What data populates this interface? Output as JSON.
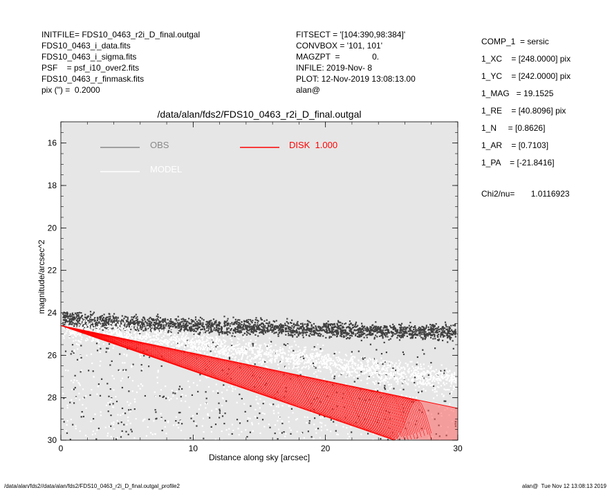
{
  "header_left": [
    "INITFILE= FDS10_0463_r2i_D_final.outgal",
    "FDS10_0463_i_data.fits",
    "FDS10_0463_i_sigma.fits",
    "PSF    = psf_i10_over2.fits",
    "FDS10_0463_r_finmask.fits",
    "pix (\") =  0.2000"
  ],
  "header_mid": [
    "FITSECT = '[104:390,98:384]'",
    "CONVBOX = '101, 101'",
    "MAGZPT  =              0.",
    "INFILE: 2019-Nov- 8",
    "PLOT: 12-Nov-2019 13:08:13.00",
    "alan@"
  ],
  "header_right": [
    "COMP_1  = sersic",
    "1_XC    = [248.0000] pix",
    "1_YC    = [242.0000] pix",
    "1_MAG   = 19.1525",
    "1_RE    = [40.8096] pix",
    "1_N     = [0.8626]",
    "1_AR    = [0.7103]",
    "1_PA    = [-21.8416]"
  ],
  "chi2_text": "Chi2/nu=       1.0116923",
  "footer_left": "/data/alan/fds2//data/alan/fds2/FDS10_0463_r2i_D_final.outgal_profile2",
  "footer_right": "alan@  Tue Nov 12 13:08:13 2019",
  "chart_data": {
    "type": "scatter",
    "title": "/data/alan/fds2/FDS10_0463_r2i_D_final.outgal",
    "xlabel": "Distance along sky [arcsec]",
    "ylabel": "magnitude/arcsec^2",
    "xlim": [
      0,
      30
    ],
    "ylim": [
      30,
      15
    ],
    "y_inverted": true,
    "x_ticks": [
      0,
      10,
      20,
      30
    ],
    "y_ticks": [
      16,
      18,
      20,
      22,
      24,
      26,
      28,
      30
    ],
    "grid": false,
    "plot_background": "#e6e6e6",
    "legend": [
      {
        "label": "OBS",
        "color": "#888888"
      },
      {
        "label": "MODEL",
        "color": "#ffffff"
      },
      {
        "label": "DISK  1.000",
        "color": "#ff0000"
      }
    ],
    "series": [
      {
        "name": "OBS",
        "color": "#404040",
        "kind": "points",
        "trend": {
          "x": [
            0.3,
            5,
            10,
            15,
            20,
            25,
            30
          ],
          "y": [
            24.3,
            24.5,
            24.6,
            24.7,
            24.8,
            24.9,
            24.9
          ]
        },
        "spread_faint_to": 30
      },
      {
        "name": "MODEL",
        "color": "#ffffff",
        "kind": "points",
        "trend": {
          "x": [
            0,
            5,
            10,
            15,
            20,
            25,
            30
          ],
          "y": [
            24.6,
            25.1,
            25.5,
            25.9,
            26.3,
            26.8,
            27.2
          ]
        },
        "spread_faint_to": 30
      },
      {
        "name": "DISK  1.000",
        "color": "#ff0000",
        "kind": "band",
        "upper": {
          "x": [
            0,
            30
          ],
          "y": [
            24.6,
            28.5
          ]
        },
        "lower": {
          "x": [
            0,
            25.2
          ],
          "y": [
            24.6,
            30.0
          ]
        }
      }
    ]
  }
}
